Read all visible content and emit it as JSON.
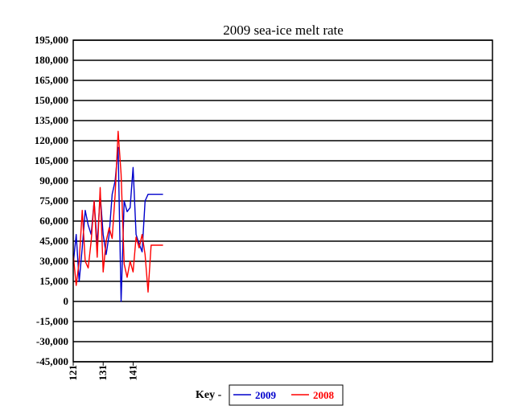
{
  "chart_data": {
    "type": "line",
    "title": "2009 sea-ice melt rate",
    "xlabel": "",
    "ylabel": "",
    "ylim": [
      -45000,
      195000
    ],
    "xlim": [
      121,
      261
    ],
    "y_ticks": [
      195000,
      180000,
      165000,
      150000,
      135000,
      120000,
      105000,
      90000,
      75000,
      60000,
      45000,
      30000,
      15000,
      0,
      -15000,
      -30000,
      -45000
    ],
    "y_tick_labels": [
      "195,000",
      "180,000",
      "165,000",
      "150,000",
      "135,000",
      "120,000",
      "105,000",
      "90,000",
      "75,000",
      "60,000",
      "45,000",
      "30,000",
      "15,000",
      "0",
      "-15,000",
      "-30,000",
      "-45,000"
    ],
    "x_ticks": [
      121,
      131,
      141
    ],
    "x_tick_labels": [
      "121",
      "131",
      "141"
    ],
    "grid": "horizontal",
    "legend": {
      "prefix": "Key -",
      "position": "bottom-center"
    },
    "series": [
      {
        "name": "2009",
        "color": "#0000cc",
        "x": [
          121,
          122,
          123,
          124,
          125,
          126,
          127,
          128,
          129,
          130,
          131,
          132,
          133,
          134,
          135,
          136,
          137,
          138,
          139,
          140,
          141,
          142,
          143,
          144,
          145,
          146,
          147,
          148,
          149,
          150,
          151
        ],
        "values": [
          28000,
          50000,
          15000,
          40000,
          68000,
          57000,
          50000,
          75000,
          42000,
          80000,
          50000,
          35000,
          50000,
          80000,
          90000,
          115000,
          0,
          75000,
          67000,
          70000,
          100000,
          50000,
          43000,
          37000,
          75000,
          80000,
          80000,
          80000,
          80000,
          80000,
          80000
        ]
      },
      {
        "name": "2008",
        "color": "#ff0000",
        "x": [
          121,
          122,
          123,
          124,
          125,
          126,
          127,
          128,
          129,
          130,
          131,
          132,
          133,
          134,
          135,
          136,
          137,
          138,
          139,
          140,
          141,
          142,
          143,
          144,
          145,
          146,
          147,
          148,
          149,
          150,
          151
        ],
        "values": [
          35000,
          12000,
          30000,
          68000,
          30000,
          25000,
          45000,
          75000,
          33000,
          85000,
          22000,
          45000,
          55000,
          47000,
          80000,
          127000,
          95000,
          28000,
          18000,
          30000,
          22000,
          48000,
          40000,
          50000,
          35000,
          7000,
          42000,
          42000,
          42000,
          42000,
          42000
        ]
      }
    ]
  }
}
